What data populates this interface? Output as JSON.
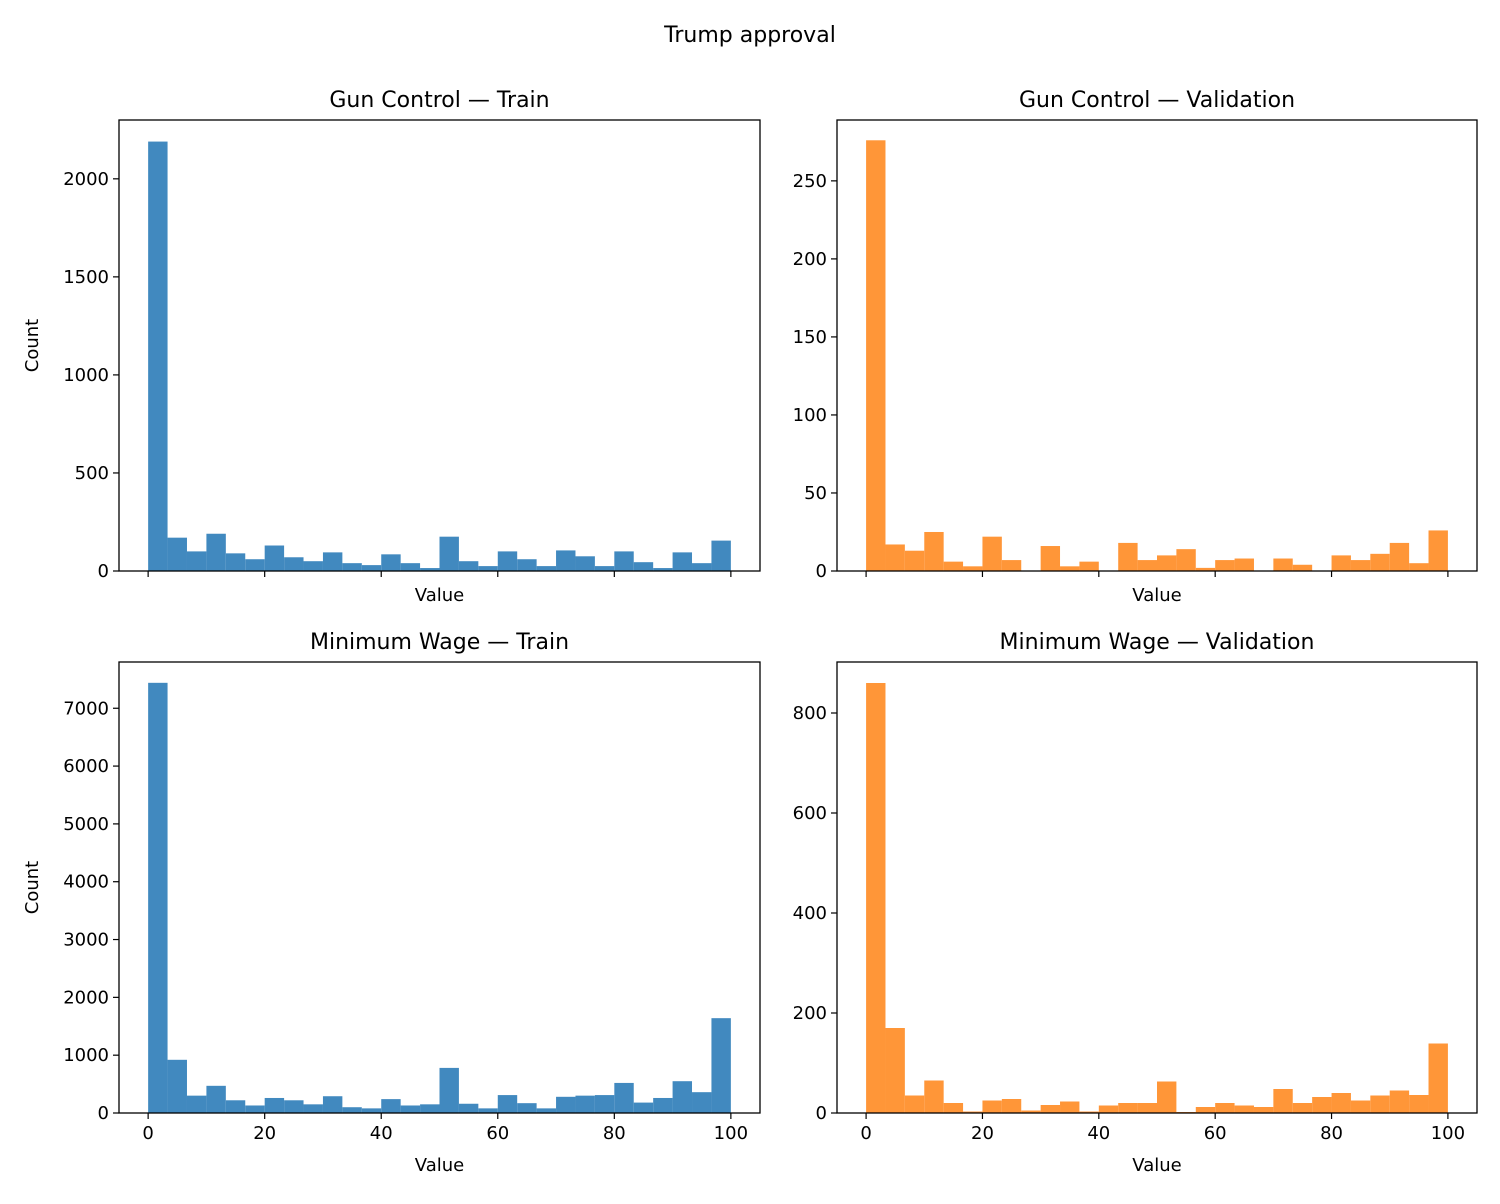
{
  "figure": {
    "suptitle": "Trump approval"
  },
  "colors": {
    "train": "#4189bf",
    "validation": "#ff9638"
  },
  "chart_data": [
    {
      "type": "bar",
      "title": "Gun Control — Train",
      "xlabel": "Value",
      "ylabel": "Count",
      "color": "#4189bf",
      "bin_width": 3.333,
      "x_range": [
        0,
        100
      ],
      "xlim": [
        -5,
        105
      ],
      "ylim": [
        0,
        2300
      ],
      "yticks": [
        0,
        500,
        1000,
        1500,
        2000
      ],
      "xticks": [
        0,
        20,
        40,
        60,
        80,
        100
      ],
      "show_xtick_labels": false,
      "values": [
        2190,
        170,
        100,
        190,
        90,
        60,
        130,
        70,
        50,
        95,
        40,
        30,
        85,
        40,
        15,
        175,
        50,
        25,
        100,
        60,
        25,
        105,
        75,
        25,
        100,
        45,
        15,
        95,
        40,
        155
      ]
    },
    {
      "type": "bar",
      "title": "Gun Control — Validation",
      "xlabel": "Value",
      "ylabel": "",
      "color": "#ff9638",
      "bin_width": 3.333,
      "x_range": [
        0,
        100
      ],
      "xlim": [
        -5,
        105
      ],
      "ylim": [
        0,
        289
      ],
      "yticks": [
        0,
        50,
        100,
        150,
        200,
        250
      ],
      "xticks": [
        0,
        20,
        40,
        60,
        80,
        100
      ],
      "show_xtick_labels": false,
      "values": [
        276,
        17,
        13,
        25,
        6,
        3,
        22,
        7,
        0,
        16,
        3,
        6,
        0,
        18,
        7,
        10,
        14,
        2,
        7,
        8,
        0,
        8,
        4,
        0,
        10,
        7,
        11,
        18,
        5,
        26
      ]
    },
    {
      "type": "bar",
      "title": "Minimum Wage — Train",
      "xlabel": "Value",
      "ylabel": "Count",
      "color": "#4189bf",
      "bin_width": 3.333,
      "x_range": [
        0,
        100
      ],
      "xlim": [
        -5,
        105
      ],
      "ylim": [
        0,
        7800
      ],
      "yticks": [
        0,
        1000,
        2000,
        3000,
        4000,
        5000,
        6000,
        7000
      ],
      "xticks": [
        0,
        20,
        40,
        60,
        80,
        100
      ],
      "show_xtick_labels": true,
      "values": [
        7440,
        920,
        300,
        470,
        220,
        130,
        260,
        220,
        150,
        290,
        100,
        80,
        240,
        130,
        150,
        780,
        160,
        80,
        310,
        170,
        80,
        280,
        300,
        310,
        520,
        180,
        260,
        550,
        360,
        1640
      ]
    },
    {
      "type": "bar",
      "title": "Minimum Wage — Validation",
      "xlabel": "Value",
      "ylabel": "",
      "color": "#ff9638",
      "bin_width": 3.333,
      "x_range": [
        0,
        100
      ],
      "xlim": [
        -5,
        105
      ],
      "ylim": [
        0,
        902
      ],
      "yticks": [
        0,
        200,
        400,
        600,
        800
      ],
      "xticks": [
        0,
        20,
        40,
        60,
        80,
        100
      ],
      "show_xtick_labels": true,
      "values": [
        860,
        170,
        35,
        65,
        20,
        3,
        25,
        28,
        5,
        16,
        23,
        3,
        15,
        20,
        20,
        63,
        2,
        12,
        20,
        15,
        12,
        48,
        20,
        32,
        40,
        25,
        35,
        45,
        36,
        139
      ]
    }
  ]
}
